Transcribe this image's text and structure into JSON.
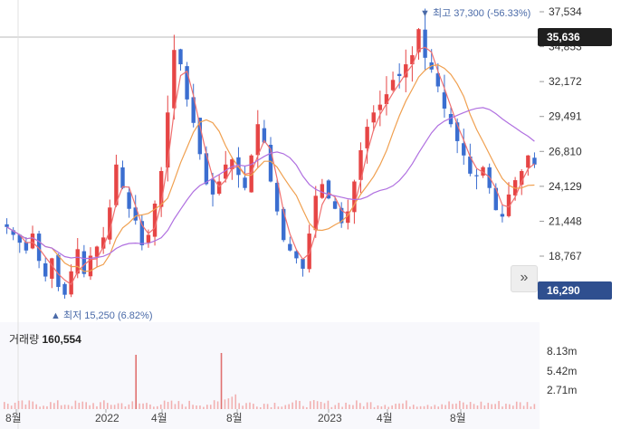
{
  "chart_data": {
    "type": "candlestick",
    "price_axis": {
      "ticks": [
        "37,534",
        "34,853",
        "32,172",
        "29,491",
        "26,810",
        "24,129",
        "21,448",
        "18,767"
      ],
      "tick_values": [
        37534,
        34853,
        32172,
        29491,
        26810,
        24129,
        21448,
        18767
      ]
    },
    "volume_axis": {
      "ticks": [
        "8.13m",
        "5.42m",
        "2.71m"
      ],
      "tick_values": [
        8130000,
        5420000,
        2710000
      ]
    },
    "x_ticks": [
      "8월",
      "2022",
      "4월",
      "8월",
      "2023",
      "4월",
      "8월"
    ],
    "current_price": "35,636",
    "other_price": "16,290",
    "high_annotation": {
      "marker": "▼",
      "label": "최고",
      "value": "37,300 (-56.33%)"
    },
    "low_annotation": {
      "marker": "▲",
      "label": "최저",
      "value": "15,250 (6.82%)"
    },
    "volume": {
      "label": "거래량",
      "value": "160,554"
    },
    "series": [
      {
        "name": "close",
        "values": [
          21000,
          20400,
          19800,
          19200,
          20500,
          18400,
          17200,
          18600,
          16400,
          15800,
          17600,
          19300,
          17400,
          18800,
          19500,
          20200,
          22500,
          25800,
          24000,
          22400,
          21500,
          19600,
          20400,
          22800,
          25300,
          29800,
          34600,
          33500,
          30800,
          29000,
          26600,
          24300,
          23500,
          24500,
          25800,
          26200,
          25000,
          24000,
          26500,
          28900,
          27500,
          24500,
          22200,
          20000,
          19200,
          18600,
          17800,
          20500,
          23400,
          24300,
          23200,
          22400,
          21300,
          22200,
          24500,
          26900,
          28700,
          29800,
          30400,
          31200,
          32300,
          32600,
          33500,
          34200,
          36200,
          34000,
          33100,
          31800,
          30100,
          28900,
          27600,
          26500,
          25100,
          24900,
          25600,
          24000,
          22300,
          21800,
          23500,
          24600,
          25300,
          26500,
          25800
        ]
      },
      {
        "name": "MA5",
        "color": "#f07070"
      },
      {
        "name": "MA20",
        "color": "#f0a050"
      },
      {
        "name": "MA60",
        "color": "#b070e0"
      }
    ],
    "colors": {
      "up": "#e64545",
      "down": "#3b6ed0",
      "volume": "#f2b0b0",
      "volume_peak": "#e07070"
    }
  }
}
